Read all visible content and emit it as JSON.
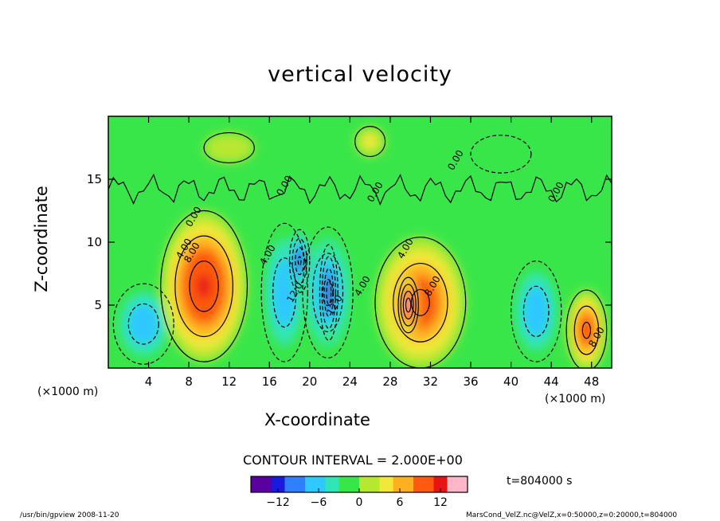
{
  "chart_data": {
    "type": "heatmap",
    "title": "vertical velocity",
    "xlabel": "X-coordinate",
    "ylabel": "Z-coordinate",
    "x_unit": "(×1000 m)",
    "xlim": [
      0,
      50
    ],
    "ylim": [
      0,
      20
    ],
    "x_ticks": [
      4,
      8,
      12,
      16,
      20,
      24,
      28,
      32,
      36,
      40,
      44,
      48
    ],
    "y_ticks": [
      5,
      10,
      15
    ],
    "contour_interval_text": "CONTOUR INTERVAL = 2.000E+00",
    "time_text": "t=804000 s",
    "colorbar": {
      "range": [
        -16,
        16
      ],
      "ticks": [
        -12,
        -6,
        0,
        6,
        12
      ],
      "colors": [
        "#5a00a0",
        "#1a1adc",
        "#2f7fff",
        "#2fc8ff",
        "#30e6b4",
        "#39e64a",
        "#b6e830",
        "#f2e83a",
        "#ffb020",
        "#ff5a10",
        "#e81414",
        "#ffb6c8"
      ]
    },
    "contour_labels": [
      "0.00",
      "0.00",
      "0.00",
      "0.00",
      "0.00",
      "4.00",
      "8.00",
      "4.00",
      "4.00",
      "12.0",
      "12.0",
      "8.00",
      "4.00",
      "8.00"
    ],
    "cells": [
      {
        "x": 3.5,
        "z": 3.5,
        "rx": 3.0,
        "rz": 3.2,
        "value": -8
      },
      {
        "x": 9.5,
        "z": 6.5,
        "rx": 4.3,
        "rz": 6.0,
        "value": 12
      },
      {
        "x": 17.5,
        "z": 6.0,
        "rx": 2.3,
        "rz": 5.5,
        "value": -8
      },
      {
        "x": 19.0,
        "z": 8.5,
        "rx": 1.0,
        "rz": 2.5,
        "value": -14
      },
      {
        "x": 21.8,
        "z": 6.0,
        "rx": 2.5,
        "rz": 5.2,
        "value": -10
      },
      {
        "x": 21.9,
        "z": 6.0,
        "rx": 0.9,
        "rz": 3.8,
        "value": -16
      },
      {
        "x": 31.0,
        "z": 5.2,
        "rx": 4.5,
        "rz": 5.2,
        "value": 10
      },
      {
        "x": 29.8,
        "z": 5.0,
        "rx": 1.0,
        "rz": 2.2,
        "value": 16
      },
      {
        "x": 42.5,
        "z": 4.5,
        "rx": 2.5,
        "rz": 4.0,
        "value": -8
      },
      {
        "x": 47.5,
        "z": 3.0,
        "rx": 2.0,
        "rz": 3.2,
        "value": 10
      },
      {
        "x": 26.0,
        "z": 18.0,
        "rx": 1.5,
        "rz": 1.2,
        "value": 4
      },
      {
        "x": 39.0,
        "z": 17.0,
        "rx": 3.0,
        "rz": 1.5,
        "value": -2
      },
      {
        "x": 12.0,
        "z": 17.5,
        "rx": 2.5,
        "rz": 1.2,
        "value": 2
      }
    ]
  },
  "footer": {
    "left": "/usr/bin/gpview  2008-11-20",
    "right": "MarsCond_VelZ.nc@VelZ,x=0:50000,z=0:20000,t=804000"
  }
}
